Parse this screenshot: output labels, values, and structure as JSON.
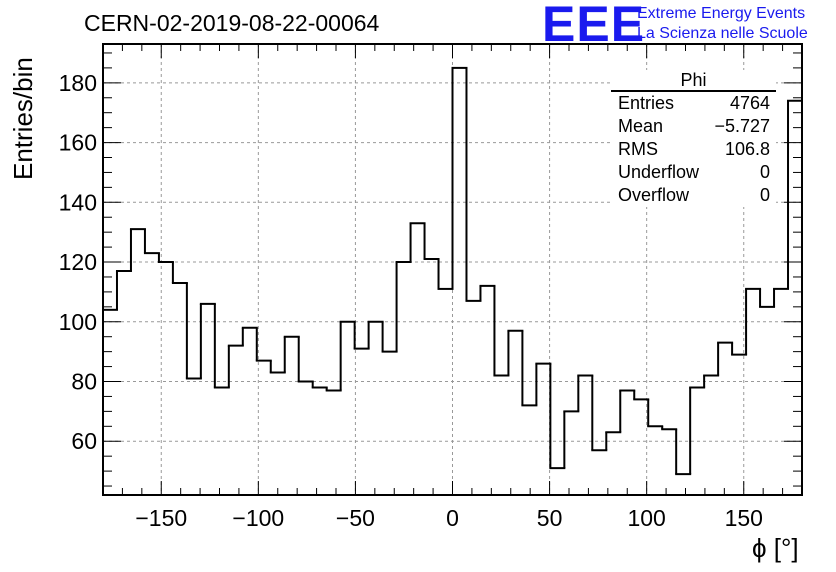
{
  "run_title": "CERN-02-2019-08-22-00064",
  "logo": {
    "mark": "EEE",
    "line1": "Extreme Energy Events",
    "line2": "La Scienza nelle Scuole",
    "color": "#1a1aee"
  },
  "stats_box": {
    "title": "Phi",
    "rows": [
      {
        "label": "Entries",
        "value": "4764"
      },
      {
        "label": "Mean",
        "value": "−5.727"
      },
      {
        "label": "RMS",
        "value": "106.8"
      },
      {
        "label": "Underflow",
        "value": "0"
      },
      {
        "label": "Overflow",
        "value": "0"
      }
    ]
  },
  "chart_data": {
    "type": "bar",
    "histogram": "step",
    "xlabel": "ϕ [°]",
    "ylabel": "Entries/bin",
    "xlim": [
      -180,
      180
    ],
    "ylim": [
      42,
      193
    ],
    "grid": true,
    "bin_width": 7.2,
    "xticks": [
      -150,
      -100,
      -50,
      0,
      50,
      100,
      150
    ],
    "yticks": [
      60,
      80,
      100,
      120,
      140,
      160,
      180
    ],
    "bin_low_edges": [
      -180,
      -172.8,
      -165.6,
      -158.4,
      -151.2,
      -144,
      -136.8,
      -129.6,
      -122.4,
      -115.2,
      -108,
      -100.8,
      -93.6,
      -86.4,
      -79.2,
      -72,
      -64.8,
      -57.6,
      -50.4,
      -43.2,
      -36,
      -28.8,
      -21.6,
      -14.4,
      -7.2,
      0,
      7.2,
      14.4,
      21.6,
      28.8,
      36,
      43.2,
      50.4,
      57.6,
      64.8,
      72,
      79.2,
      86.4,
      93.6,
      100.8,
      108,
      115.2,
      122.4,
      129.6,
      136.8,
      144,
      151.2,
      158.4,
      165.6,
      172.8
    ],
    "values": [
      104,
      117,
      131,
      123,
      120,
      113,
      81,
      106,
      78,
      92,
      98,
      87,
      83,
      95,
      80,
      78,
      77,
      100,
      91,
      100,
      90,
      120,
      133,
      121,
      111,
      185,
      107,
      112,
      82,
      97,
      72,
      86,
      51,
      70,
      82,
      57,
      63,
      77,
      74,
      65,
      64,
      49,
      78,
      82,
      93,
      89,
      111,
      105,
      111,
      174
    ]
  }
}
